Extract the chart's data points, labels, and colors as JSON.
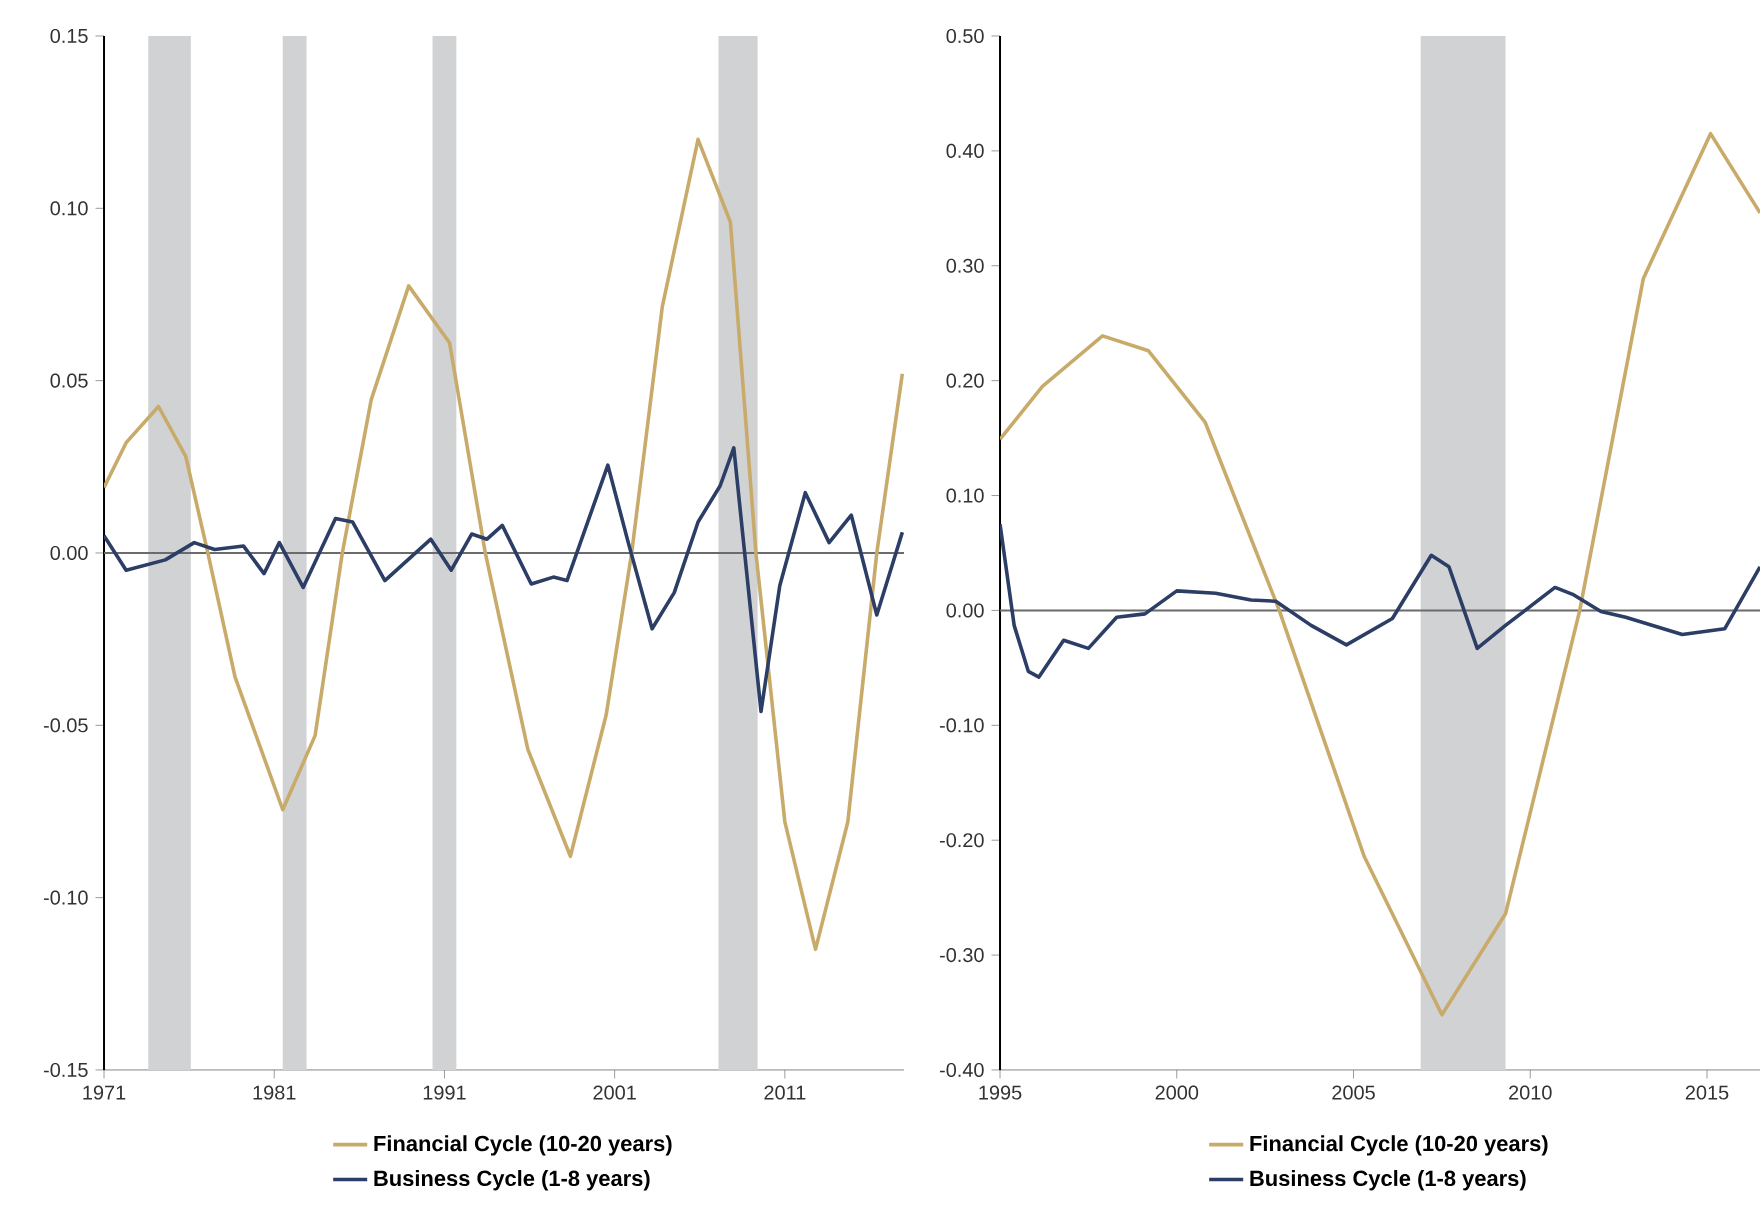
{
  "chart_data": [
    {
      "type": "line",
      "legend": "bottom",
      "xlim": [
        1971,
        2018
      ],
      "xticks": [
        1971,
        1981,
        1991,
        2001,
        2011
      ],
      "ylim": [
        -0.15,
        0.15
      ],
      "yticks": [
        {
          "value": -0.15,
          "label": "-0.15"
        },
        {
          "value": -0.1,
          "label": "-0.10"
        },
        {
          "value": -0.05,
          "label": "-0.05"
        },
        {
          "value": 0,
          "label": "0.00"
        },
        {
          "value": 0.05,
          "label": "0.05"
        },
        {
          "value": 0.1,
          "label": "0.10"
        },
        {
          "value": 0.15,
          "label": "0.15"
        }
      ],
      "ref_lines": [
        {
          "axis": "y",
          "value": 0,
          "color": "#6b6b6b"
        }
      ],
      "bands": [
        {
          "axis": "x",
          "from": 1973.6,
          "to": 1976.1,
          "color": "#d1d2d4"
        },
        {
          "axis": "x",
          "from": 1981.5,
          "to": 1982.9,
          "color": "#d1d2d4"
        },
        {
          "axis": "x",
          "from": 1990.3,
          "to": 1991.7,
          "color": "#d1d2d4"
        },
        {
          "axis": "x",
          "from": 2007.1,
          "to": 2009.4,
          "color": "#d1d2d4"
        }
      ],
      "series": [
        {
          "name": "Financial Cycle (10-20 years)",
          "color": "#c8ab6a",
          "x": [
            1971,
            1972.3,
            1974.2,
            1975.8,
            1977.1,
            1978.7,
            1981.5,
            1983.4,
            1985,
            1986.7,
            1988.9,
            1991.3,
            1993.4,
            1995.9,
            1998.4,
            2000.5,
            2002,
            2003.8,
            2005.9,
            2007.8,
            2009.3,
            2011,
            2012.8,
            2014.7,
            2016.4,
            2017.9
          ],
          "values": [
            0.019,
            0.032,
            0.0425,
            0.028,
            0,
            -0.036,
            -0.0745,
            -0.053,
            0,
            0.0445,
            0.0775,
            0.061,
            0,
            -0.057,
            -0.088,
            -0.047,
            0,
            0.0715,
            0.12,
            0.096,
            0,
            -0.078,
            -0.115,
            -0.078,
            0,
            0.052
          ]
        },
        {
          "name": "Business Cycle (1-8 years)",
          "color": "#2c3e66",
          "x": [
            1971,
            1972.3,
            1974.6,
            1976.3,
            1977.5,
            1979.2,
            1980.4,
            1981.3,
            1982.7,
            1984.6,
            1985.6,
            1987.5,
            1990.2,
            1991.4,
            1992.6,
            1993.5,
            1994.4,
            1996.1,
            1997.4,
            1998.2,
            2000.6,
            2001.8,
            2003.2,
            2004.5,
            2005.9,
            2007.2,
            2008.0,
            2009.6,
            2010.7,
            2012.2,
            2013.6,
            2014.9,
            2016.4,
            2017.9
          ],
          "values": [
            0.005,
            -0.005,
            -0.002,
            0.003,
            0.001,
            0.002,
            -0.006,
            0.003,
            -0.01,
            0.01,
            0.009,
            -0.008,
            0.004,
            -0.005,
            0.0055,
            0.004,
            0.008,
            -0.009,
            -0.007,
            -0.008,
            0.0255,
            0.003,
            -0.022,
            -0.0115,
            0.009,
            0.0195,
            0.0305,
            -0.046,
            -0.0095,
            0.0175,
            0.003,
            0.011,
            -0.018,
            0.006
          ]
        }
      ]
    },
    {
      "type": "line",
      "legend": "bottom",
      "xlim": [
        1995,
        2016.5
      ],
      "xticks": [
        1995,
        2000,
        2005,
        2010,
        2015
      ],
      "ylim": [
        -0.4,
        0.5
      ],
      "yticks": [
        {
          "value": -0.4,
          "label": "-0.40"
        },
        {
          "value": -0.3,
          "label": "-0.30"
        },
        {
          "value": -0.2,
          "label": "-0.20"
        },
        {
          "value": -0.1,
          "label": "-0.10"
        },
        {
          "value": 0,
          "label": "0.00"
        },
        {
          "value": 0.1,
          "label": "0.10"
        },
        {
          "value": 0.2,
          "label": "0.20"
        },
        {
          "value": 0.3,
          "label": "0.30"
        },
        {
          "value": 0.4,
          "label": "0.40"
        },
        {
          "value": 0.5,
          "label": "0.50"
        }
      ],
      "ref_lines": [
        {
          "axis": "y",
          "value": 0,
          "color": "#6b6b6b"
        }
      ],
      "bands": [
        {
          "axis": "x",
          "from": 2006.9,
          "to": 2009.3,
          "color": "#d1d2d4"
        }
      ],
      "series": [
        {
          "name": "Financial Cycle (10-20 years)",
          "color": "#c8ab6a",
          "x": [
            1995,
            1996.2,
            1997.9,
            1999.2,
            2000.8,
            2002.9,
            2005.3,
            2007.5,
            2009.3,
            2011.4,
            2013.2,
            2015.1,
            2016.5
          ],
          "values": [
            0.149,
            0.195,
            0.239,
            0.226,
            0.164,
            0,
            -0.214,
            -0.352,
            -0.264,
            0,
            0.289,
            0.415,
            0.346
          ]
        },
        {
          "name": "Business Cycle (1-8 years)",
          "color": "#2c3e66",
          "x": [
            1995,
            1995.4,
            1995.8,
            1996.1,
            1996.8,
            1997.5,
            1998.3,
            1999.1,
            2000,
            2001.1,
            2002.1,
            2002.8,
            2003.8,
            2004.8,
            2006.1,
            2007.2,
            2007.7,
            2008.5,
            2009.3,
            2010.7,
            2011.2,
            2012,
            2012.7,
            2014.3,
            2015.5,
            2016.5
          ],
          "values": [
            0.075,
            -0.013,
            -0.053,
            -0.058,
            -0.026,
            -0.033,
            -0.006,
            -0.003,
            0.017,
            0.015,
            0.009,
            0.008,
            -0.013,
            -0.03,
            -0.007,
            0.048,
            0.038,
            -0.033,
            -0.013,
            0.02,
            0.014,
            -0.001,
            -0.006,
            -0.021,
            -0.016,
            0.038
          ]
        }
      ]
    }
  ]
}
